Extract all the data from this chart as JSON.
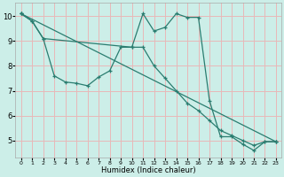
{
  "xlabel": "Humidex (Indice chaleur)",
  "background_color": "#cceee8",
  "grid_color": "#e8b8b8",
  "line_color": "#2a7d70",
  "xlim": [
    -0.5,
    23.5
  ],
  "ylim": [
    4.3,
    10.55
  ],
  "xticks": [
    0,
    1,
    2,
    3,
    4,
    5,
    6,
    7,
    8,
    9,
    10,
    11,
    12,
    13,
    14,
    15,
    16,
    17,
    18,
    19,
    20,
    21,
    22,
    23
  ],
  "yticks": [
    5,
    6,
    7,
    8,
    9,
    10
  ],
  "line1_x": [
    0,
    1,
    2,
    10,
    11,
    12,
    13,
    14,
    15,
    16,
    17,
    18,
    19,
    20,
    21,
    22,
    23
  ],
  "line1_y": [
    10.1,
    9.8,
    9.1,
    8.75,
    10.1,
    9.4,
    9.55,
    10.1,
    9.95,
    9.95,
    6.6,
    5.15,
    5.15,
    4.85,
    4.6,
    4.95,
    4.95
  ],
  "line2_x": [
    0,
    1,
    2,
    3,
    4,
    5,
    6,
    7,
    8,
    9,
    10,
    11,
    12,
    13,
    14,
    15,
    16,
    17,
    18,
    19,
    20,
    21,
    22,
    23
  ],
  "line2_y": [
    10.1,
    9.8,
    9.1,
    7.6,
    7.35,
    7.3,
    7.2,
    7.55,
    7.8,
    8.75,
    8.75,
    8.75,
    8.0,
    7.5,
    7.0,
    6.5,
    6.2,
    5.8,
    5.4,
    5.2,
    5.0,
    4.8,
    4.95,
    4.95
  ],
  "line3_x": [
    0,
    23
  ],
  "line3_y": [
    10.1,
    4.95
  ]
}
